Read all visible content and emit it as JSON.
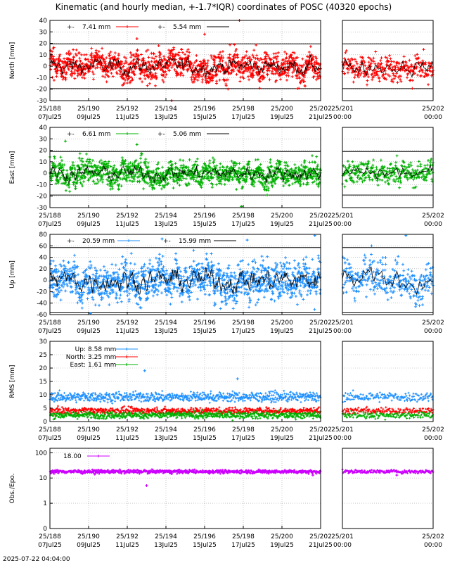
{
  "title": "Kinematic (and hourly median, +-1.7*IQR) coordinates of POSC (40320 epochs)",
  "timestamp": "2025-07-22 04:04:00",
  "chart_data": [
    {
      "id": "north",
      "type": "scatter",
      "ylabel": "North [mm]",
      "ylim": [
        -30,
        40
      ],
      "yticks": [
        -30,
        -20,
        -10,
        0,
        10,
        20,
        30,
        40
      ],
      "color": "#ff0000",
      "median_color": "#000000",
      "bounds": [
        -19.5,
        19.5
      ],
      "series": [
        {
          "name": "7.41 mm",
          "legend_prefix": "+-",
          "color": "#ff0000",
          "std": 7.41
        },
        {
          "name": "5.54 mm",
          "legend_prefix": "+-",
          "color": "#000000",
          "std": 5.54
        }
      ],
      "spikes": [
        {
          "x": 197.8,
          "y": 40
        },
        {
          "x": 196.0,
          "y": 28
        },
        {
          "x": 194.3,
          "y": -30
        },
        {
          "x": 192.5,
          "y": 24
        }
      ],
      "grid": true
    },
    {
      "id": "east",
      "type": "scatter",
      "ylabel": "East [mm]",
      "ylim": [
        -30,
        40
      ],
      "yticks": [
        -30,
        -20,
        -10,
        0,
        10,
        20,
        30,
        40
      ],
      "color": "#00b000",
      "median_color": "#000000",
      "bounds": [
        -19,
        19
      ],
      "series": [
        {
          "name": "6.61 mm",
          "legend_prefix": "+-",
          "color": "#00b000",
          "std": 6.61
        },
        {
          "name": "5.06 mm",
          "legend_prefix": "+-",
          "color": "#000000",
          "std": 5.06
        }
      ],
      "spikes": [
        {
          "x": 197.9,
          "y": -29
        },
        {
          "x": 188.8,
          "y": 28
        },
        {
          "x": 192.5,
          "y": 25
        }
      ],
      "grid": true
    },
    {
      "id": "up",
      "type": "scatter",
      "ylabel": "Up [mm]",
      "ylim": [
        -60,
        80
      ],
      "yticks": [
        -60,
        -40,
        -20,
        0,
        20,
        40,
        60,
        80
      ],
      "color": "#1e90ff",
      "median_color": "#000000",
      "bounds": [
        -57,
        57
      ],
      "series": [
        {
          "name": "20.59 mm",
          "legend_prefix": "+-",
          "color": "#1e90ff",
          "std": 20.59
        },
        {
          "name": "15.99 mm",
          "legend_prefix": "+-",
          "color": "#000000",
          "std": 15.99
        }
      ],
      "spikes": [
        {
          "x": 201.7,
          "y": 78
        },
        {
          "x": 198.2,
          "y": 70
        },
        {
          "x": 193.8,
          "y": 72
        },
        {
          "x": 190.1,
          "y": -58
        }
      ],
      "grid": true
    },
    {
      "id": "rms",
      "type": "scatter",
      "ylabel": "RMS [mm]",
      "ylim": [
        0,
        30
      ],
      "yticks": [
        0,
        5,
        10,
        15,
        20,
        25,
        30
      ],
      "grid": true,
      "series": [
        {
          "name": "Up:",
          "value_label": "8.58 mm",
          "color": "#1e90ff",
          "mean": 9.2,
          "std": 1.3
        },
        {
          "name": "North:",
          "value_label": "3.25 mm",
          "color": "#ff0000",
          "mean": 4.0,
          "std": 0.9
        },
        {
          "name": "East:",
          "value_label": "1.61 mm",
          "color": "#00b000",
          "mean": 2.4,
          "std": 0.9
        }
      ],
      "spikes": [
        {
          "x": 192.9,
          "y": 19
        },
        {
          "x": 197.7,
          "y": 16
        }
      ]
    },
    {
      "id": "obs",
      "type": "scatter",
      "ylabel": "Obs./Epo.",
      "yscale": "log",
      "ylim": [
        0.1,
        150
      ],
      "yticks": [
        0.1,
        1,
        10,
        100
      ],
      "ytick_labels": [
        "0",
        "1",
        "10",
        "100"
      ],
      "color": "#cc00ff",
      "grid": true,
      "series": [
        {
          "name": "18.00",
          "color": "#cc00ff",
          "mean": 18.0
        }
      ],
      "spikes": [
        {
          "x": 193.0,
          "y": 5
        },
        {
          "x": 201.6,
          "y": 13
        }
      ]
    }
  ],
  "x_axis": {
    "main": {
      "range": [
        188,
        202
      ],
      "ticks": [
        {
          "doy": "25/188",
          "date": "07Jul25"
        },
        {
          "doy": "25/190",
          "date": "09Jul25"
        },
        {
          "doy": "25/192",
          "date": "11Jul25"
        },
        {
          "doy": "25/194",
          "date": "13Jul25"
        },
        {
          "doy": "25/196",
          "date": "15Jul25"
        },
        {
          "doy": "25/198",
          "date": "17Jul25"
        },
        {
          "doy": "25/200",
          "date": "19Jul25"
        },
        {
          "doy": "25/202",
          "date": "21Jul25"
        }
      ]
    },
    "zoom": {
      "range": [
        201,
        202
      ],
      "ticks": [
        {
          "doy": "25/201",
          "date": "00:00"
        },
        {
          "doy": "25/202",
          "date": "00:00"
        }
      ]
    }
  }
}
